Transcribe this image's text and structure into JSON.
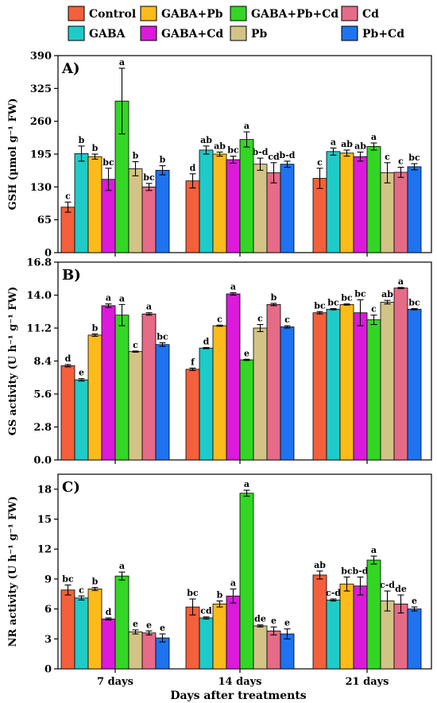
{
  "legend": [
    {
      "name": "Control",
      "color": "#f4603b"
    },
    {
      "name": "GABA+Pb",
      "color": "#fdbb1a"
    },
    {
      "name": "GABA+Pb+Cd",
      "color": "#33d624"
    },
    {
      "name": "Cd",
      "color": "#e56b86"
    },
    {
      "name": "GABA",
      "color": "#1ecbc9"
    },
    {
      "name": "GABA+Cd",
      "color": "#db1adb"
    },
    {
      "name": "Pb",
      "color": "#d2c486"
    },
    {
      "name": "Pb+Cd",
      "color": "#1e73f0"
    }
  ],
  "xlabel": "Days after treatments",
  "chart_data": [
    {
      "type": "bar",
      "panel_label": "A)",
      "ylabel": "GSH (µmol g⁻¹ FW)",
      "ylim": [
        0,
        390
      ],
      "yticks": [
        0,
        65,
        130,
        195,
        260,
        325,
        390
      ],
      "categories": [
        "7 days",
        "14 days",
        "21 days"
      ],
      "series": [
        {
          "name": "Control",
          "values": [
            90,
            142,
            147
          ],
          "errors": [
            10,
            14,
            20
          ],
          "letters": [
            "c",
            "d",
            "c"
          ]
        },
        {
          "name": "GABA",
          "values": [
            196,
            203,
            200
          ],
          "errors": [
            15,
            8,
            7
          ],
          "letters": [
            "b",
            "ab",
            "a"
          ]
        },
        {
          "name": "GABA+Pb",
          "values": [
            190,
            195,
            197
          ],
          "errors": [
            5,
            4,
            6
          ],
          "letters": [
            "b",
            "ab",
            "ab"
          ]
        },
        {
          "name": "GABA+Cd",
          "values": [
            145,
            184,
            190
          ],
          "errors": [
            22,
            7,
            9
          ],
          "letters": [
            "bc",
            "bc",
            "ab"
          ]
        },
        {
          "name": "GABA+Pb+Cd",
          "values": [
            300,
            224,
            210
          ],
          "errors": [
            65,
            15,
            7
          ],
          "letters": [
            "a",
            "a",
            "a"
          ]
        },
        {
          "name": "Pb",
          "values": [
            166,
            175,
            158
          ],
          "errors": [
            14,
            12,
            20
          ],
          "letters": [
            "b",
            "b-d",
            "c"
          ]
        },
        {
          "name": "Cd",
          "values": [
            130,
            158,
            159
          ],
          "errors": [
            7,
            20,
            10
          ],
          "letters": [
            "bc",
            "cd",
            "c"
          ]
        },
        {
          "name": "Pb+Cd",
          "values": [
            163,
            175,
            170
          ],
          "errors": [
            9,
            6,
            6
          ],
          "letters": [
            "b",
            "b-d",
            "bc"
          ]
        }
      ]
    },
    {
      "type": "bar",
      "panel_label": "B)",
      "ylabel": "GS activity (U h⁻¹ g⁻¹ FW)",
      "ylim": [
        0,
        16.8
      ],
      "yticks": [
        0.0,
        2.8,
        5.6,
        8.4,
        11.2,
        14.0,
        16.8
      ],
      "categories": [
        "7 days",
        "14 days",
        "21 days"
      ],
      "series": [
        {
          "name": "Control",
          "values": [
            8.0,
            7.7,
            12.5
          ],
          "errors": [
            0.1,
            0.1,
            0.1
          ],
          "letters": [
            "d",
            "f",
            "bc"
          ]
        },
        {
          "name": "GABA",
          "values": [
            6.8,
            9.5,
            12.8
          ],
          "errors": [
            0.1,
            0.05,
            0.05
          ],
          "letters": [
            "e",
            "d",
            "bc"
          ]
        },
        {
          "name": "GABA+Pb",
          "values": [
            10.6,
            11.4,
            13.2
          ],
          "errors": [
            0.1,
            0.05,
            0.05
          ],
          "letters": [
            "b",
            "c",
            "bc"
          ]
        },
        {
          "name": "GABA+Cd",
          "values": [
            13.1,
            14.1,
            12.5
          ],
          "errors": [
            0.15,
            0.1,
            1.1
          ],
          "letters": [
            "a",
            "a",
            "bc"
          ]
        },
        {
          "name": "GABA+Pb+Cd",
          "values": [
            12.3,
            8.5,
            11.9
          ],
          "errors": [
            0.9,
            0.05,
            0.4
          ],
          "letters": [
            "a",
            "e",
            "c"
          ]
        },
        {
          "name": "Pb",
          "values": [
            9.2,
            11.2,
            13.4
          ],
          "errors": [
            0.05,
            0.3,
            0.15
          ],
          "letters": [
            "c",
            "c",
            "ab"
          ]
        },
        {
          "name": "Cd",
          "values": [
            12.4,
            13.2,
            14.6
          ],
          "errors": [
            0.1,
            0.1,
            0.05
          ],
          "letters": [
            "a",
            "b",
            "a"
          ]
        },
        {
          "name": "Pb+Cd",
          "values": [
            9.8,
            11.3,
            12.8
          ],
          "errors": [
            0.15,
            0.1,
            0.05
          ],
          "letters": [
            "bc",
            "c",
            "bc"
          ]
        }
      ]
    },
    {
      "type": "bar",
      "panel_label": "C)",
      "ylabel": "NR activity (U h⁻¹ g⁻¹ FW)",
      "ylim": [
        0,
        19.5
      ],
      "yticks": [
        0,
        3,
        6,
        9,
        12,
        15,
        18
      ],
      "categories": [
        "7 days",
        "14 days",
        "21 days"
      ],
      "series": [
        {
          "name": "Control",
          "values": [
            7.9,
            6.2,
            9.4
          ],
          "errors": [
            0.5,
            0.8,
            0.4
          ],
          "letters": [
            "bc",
            "bc",
            "ab"
          ]
        },
        {
          "name": "GABA",
          "values": [
            7.1,
            5.1,
            6.9
          ],
          "errors": [
            0.2,
            0.1,
            0.1
          ],
          "letters": [
            "c",
            "cd",
            "c-d"
          ]
        },
        {
          "name": "GABA+Pb",
          "values": [
            8.0,
            6.5,
            8.5
          ],
          "errors": [
            0.15,
            0.3,
            0.7
          ],
          "letters": [
            "b",
            "b",
            "bc"
          ]
        },
        {
          "name": "GABA+Cd",
          "values": [
            5.0,
            7.3,
            8.3
          ],
          "errors": [
            0.1,
            0.7,
            0.9
          ],
          "letters": [
            "d",
            "a",
            "b-d"
          ]
        },
        {
          "name": "GABA+Pb+Cd",
          "values": [
            9.3,
            17.6,
            10.9
          ],
          "errors": [
            0.4,
            0.3,
            0.4
          ],
          "letters": [
            "a",
            "a",
            "a"
          ]
        },
        {
          "name": "Pb",
          "values": [
            3.7,
            4.3,
            6.8
          ],
          "errors": [
            0.2,
            0.1,
            1.0
          ],
          "letters": [
            "e",
            "de",
            "c-d"
          ]
        },
        {
          "name": "Cd",
          "values": [
            3.6,
            3.8,
            6.5
          ],
          "errors": [
            0.2,
            0.4,
            0.9
          ],
          "letters": [
            "e",
            "e",
            "de"
          ]
        },
        {
          "name": "Pb+Cd",
          "values": [
            3.1,
            3.5,
            6.0
          ],
          "errors": [
            0.4,
            0.5,
            0.2
          ],
          "letters": [
            "e",
            "e",
            "e"
          ]
        }
      ]
    }
  ]
}
